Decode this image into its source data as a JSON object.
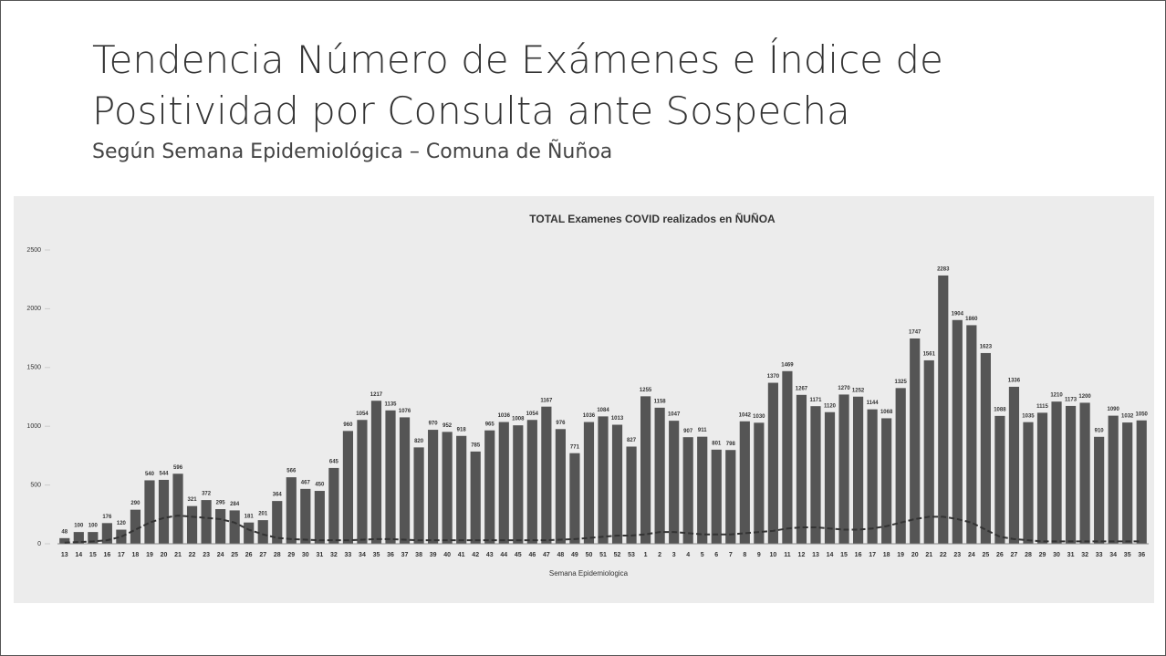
{
  "slide": {
    "title": [
      "Tendencia Número de Exámenes e Índice de",
      "Positividad por Consulta ante Sospecha"
    ],
    "subtitle": "Según Semana Epidemiológica – Comuna de Ñuñoa"
  },
  "chart_data": {
    "type": "bar",
    "title": "TOTAL Examenes COVID realizados en ÑUÑOA",
    "xlabel": "Semana Epidemiologica",
    "categories": [
      "13",
      "14",
      "15",
      "16",
      "17",
      "18",
      "19",
      "20",
      "21",
      "22",
      "23",
      "24",
      "25",
      "26",
      "27",
      "28",
      "29",
      "30",
      "31",
      "32",
      "33",
      "34",
      "35",
      "36",
      "37",
      "38",
      "39",
      "40",
      "41",
      "42",
      "43",
      "44",
      "45",
      "46",
      "47",
      "48",
      "49",
      "50",
      "51",
      "52",
      "53",
      "1",
      "2",
      "3",
      "4",
      "5",
      "6",
      "7",
      "8",
      "9",
      "10",
      "11",
      "12",
      "13",
      "14",
      "15",
      "16",
      "17",
      "18",
      "19",
      "20",
      "21",
      "22",
      "23",
      "24",
      "25",
      "26",
      "27",
      "28",
      "29",
      "30",
      "31",
      "32",
      "33",
      "34",
      "35",
      "36"
    ],
    "values": [
      48,
      100,
      100,
      176,
      120,
      290,
      540,
      544,
      596,
      321,
      372,
      295,
      284,
      181,
      201,
      364,
      566,
      467,
      450,
      645,
      960,
      1054,
      1217,
      1135,
      1076,
      820,
      970,
      952,
      918,
      785,
      965,
      1036,
      1008,
      1054,
      1167,
      976,
      771,
      1036,
      1084,
      1013,
      827,
      1255,
      1158,
      1047,
      907,
      911,
      801,
      798,
      1042,
      1030,
      1370,
      1469,
      1267,
      1171,
      1120,
      1270,
      1252,
      1144,
      1068,
      1325,
      1747,
      1561,
      2283,
      1904,
      1860,
      1623,
      1088,
      1336,
      1035,
      1115,
      1210,
      1173,
      1200,
      910,
      1090,
      1032,
      1050
    ],
    "color": "#555555",
    "line": {
      "color": "#333333",
      "values": [
        10,
        15,
        20,
        30,
        60,
        120,
        180,
        220,
        240,
        230,
        220,
        210,
        180,
        120,
        80,
        50,
        40,
        35,
        30,
        30,
        30,
        35,
        40,
        40,
        35,
        30,
        30,
        30,
        30,
        30,
        30,
        30,
        30,
        30,
        30,
        35,
        40,
        50,
        60,
        70,
        70,
        80,
        100,
        100,
        90,
        80,
        80,
        80,
        90,
        100,
        110,
        130,
        140,
        140,
        130,
        120,
        120,
        130,
        150,
        180,
        210,
        230,
        230,
        210,
        180,
        120,
        60,
        40,
        30,
        20,
        20,
        20,
        20,
        20,
        20,
        20,
        20
      ]
    },
    "ylim": [
      0,
      2500
    ],
    "yticks": [
      0,
      500,
      1000,
      1500,
      2000,
      2500
    ]
  }
}
